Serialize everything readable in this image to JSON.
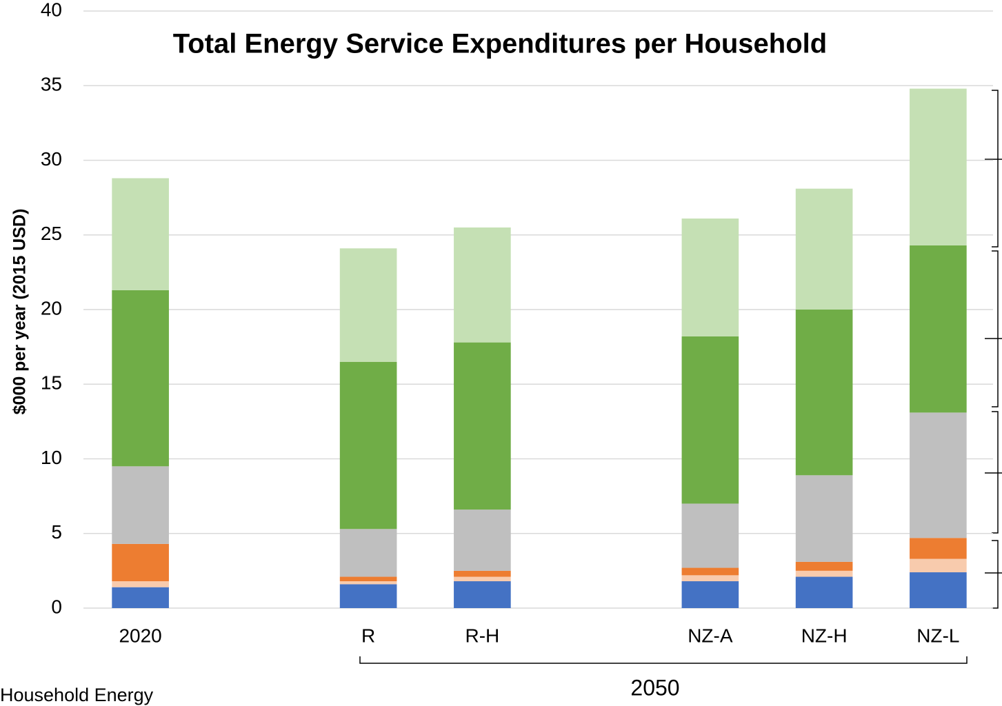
{
  "chart_data": {
    "type": "bar",
    "stacked": true,
    "title": "Total Energy Service Expenditures per Household",
    "y_label": "$000 per year (2015 USD)",
    "group_label": "2050",
    "footnote": "Household Energy",
    "categories": [
      "2020",
      null,
      "R",
      "R-H",
      null,
      "NZ-A",
      "NZ-H",
      "NZ-L"
    ],
    "series": [
      {
        "color": "#4472c4",
        "values": [
          1.4,
          null,
          1.6,
          1.8,
          null,
          1.8,
          2.1,
          2.4
        ]
      },
      {
        "color": "#f8cbad",
        "values": [
          0.4,
          null,
          0.2,
          0.3,
          null,
          0.4,
          0.4,
          0.9
        ]
      },
      {
        "color": "#ed7d31",
        "values": [
          2.5,
          null,
          0.3,
          0.4,
          null,
          0.5,
          0.6,
          1.4
        ]
      },
      {
        "color": "#bfbfbf",
        "values": [
          5.2,
          null,
          3.2,
          4.1,
          null,
          4.3,
          5.8,
          8.4
        ]
      },
      {
        "color": "#70ad47",
        "values": [
          11.8,
          null,
          11.2,
          11.2,
          null,
          11.2,
          11.1,
          11.2
        ]
      },
      {
        "color": "#c5e0b4",
        "values": [
          7.5,
          null,
          7.6,
          7.7,
          null,
          7.9,
          8.1,
          10.5
        ]
      }
    ],
    "ylim": [
      0,
      40
    ],
    "yticks": [
      0,
      5,
      10,
      15,
      20,
      25,
      30,
      35,
      40
    ],
    "grid": true
  }
}
